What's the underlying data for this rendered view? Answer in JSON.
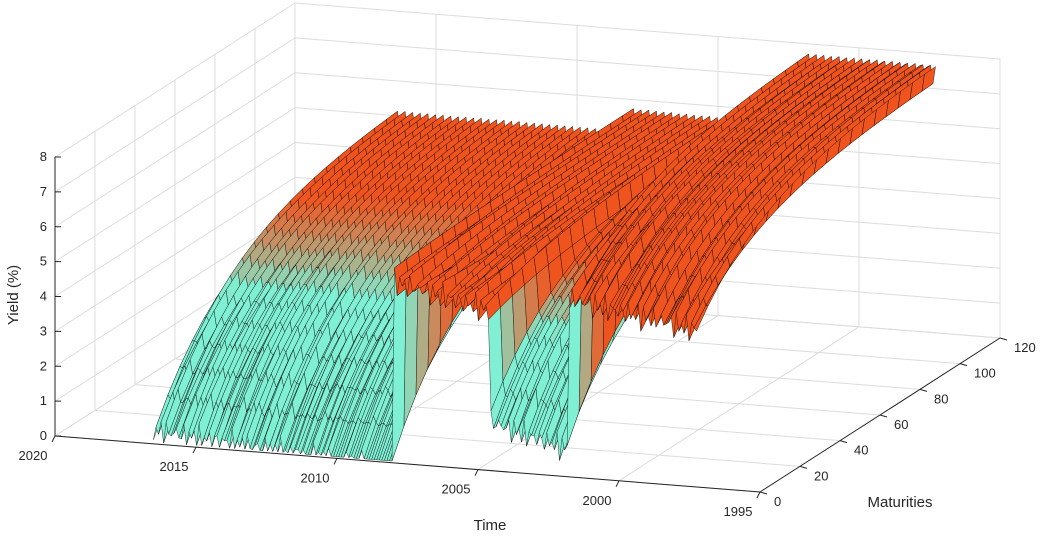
{
  "chart_data": {
    "type": "surface3d",
    "title": "",
    "xlabel": "Time",
    "ylabel": "Maturities",
    "zlabel": "Yield (%)",
    "time_ticks": [
      "1995",
      "2000",
      "2005",
      "2010",
      "2015",
      "2020"
    ],
    "time_range": [
      1995,
      2020
    ],
    "maturity_ticks": [
      "0",
      "20",
      "40",
      "60",
      "80",
      "100",
      "120"
    ],
    "maturity_range": [
      0,
      120
    ],
    "yield_ticks": [
      "0",
      "1",
      "2",
      "3",
      "4",
      "5",
      "6",
      "7",
      "8"
    ],
    "yield_range": [
      0,
      8
    ],
    "grid": true,
    "colors": {
      "low_yield": "#7ff0d4",
      "high_yield": "#f0541e",
      "mesh": "#000000"
    },
    "regimes": [
      {
        "from": 1997.2,
        "to": 2001.8,
        "short_yield": 4.8,
        "long_yield": 7.6
      },
      {
        "from": 2001.8,
        "to": 2004.6,
        "short_yield": 1.1,
        "long_yield": 5.6
      },
      {
        "from": 2004.6,
        "to": 2008.0,
        "short_yield": 4.9,
        "long_yield": 5.5
      },
      {
        "from": 2008.0,
        "to": 2016.6,
        "short_yield": 0.1,
        "long_yield": 5.0
      }
    ]
  }
}
